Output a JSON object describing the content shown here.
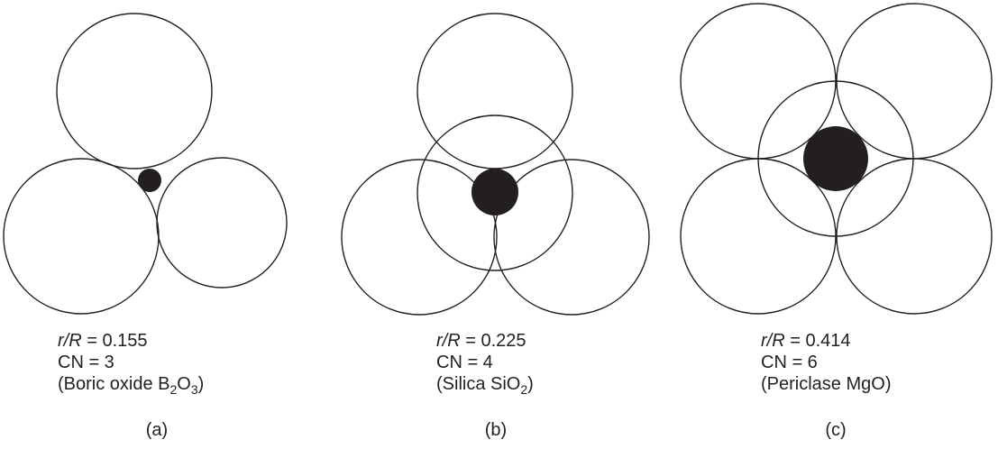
{
  "panels": [
    {
      "ratio_symbol": "r/R",
      "ratio_value": "0.155",
      "cn_text": "CN = 3",
      "compound_prefix": "(Boric oxide B",
      "compound_sub1": "2",
      "compound_mid": "O",
      "compound_sub2": "3",
      "compound_suffix": ")",
      "label": "(a)"
    },
    {
      "ratio_symbol": "r/R",
      "ratio_value": "0.225",
      "cn_text": "CN = 4",
      "compound_prefix": "(Silica SiO",
      "compound_sub1": "2",
      "compound_suffix": ")",
      "label": "(b)"
    },
    {
      "ratio_symbol": "r/R",
      "ratio_value": "0.414",
      "cn_text": "CN = 6",
      "compound_text": "(Periclase MgO)",
      "label": "(c)"
    }
  ]
}
